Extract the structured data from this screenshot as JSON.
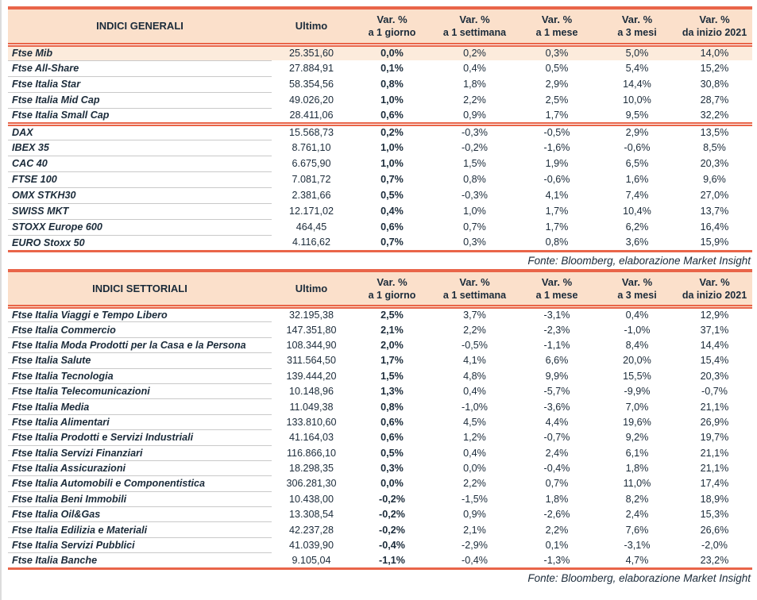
{
  "colors": {
    "accent_red": "#e96549",
    "header_bg": "#fbe0cb",
    "highlight_row_bg": "#fcebdc",
    "text_dark": "#1b2b3a",
    "row_line": "#c9c9c9"
  },
  "fonte": "Fonte: Bloomberg, elaborazione Market Insight",
  "columns": {
    "ultimo": "Ultimo",
    "var_label": "Var. %",
    "periods": [
      "a 1 giorno",
      "a 1 settimana",
      "a 1 mese",
      "a 3 mesi",
      "da inizio 2021"
    ]
  },
  "tables": [
    {
      "id": "general",
      "title": "INDICI GENERALI",
      "groups": [
        {
          "rows": [
            {
              "name": "Ftse Mib",
              "ultimo": "25.351,60",
              "vars": [
                "0,0%",
                "0,2%",
                "0,3%",
                "5,0%",
                "14,0%"
              ],
              "highlight": true
            },
            {
              "name": "Ftse All-Share",
              "ultimo": "27.884,91",
              "vars": [
                "0,1%",
                "0,4%",
                "0,5%",
                "5,4%",
                "15,2%"
              ]
            },
            {
              "name": "Ftse Italia Star",
              "ultimo": "58.354,56",
              "vars": [
                "0,8%",
                "1,8%",
                "2,9%",
                "14,4%",
                "30,8%"
              ]
            },
            {
              "name": "Ftse Italia Mid Cap",
              "ultimo": "49.026,20",
              "vars": [
                "1,0%",
                "2,2%",
                "2,5%",
                "10,0%",
                "28,7%"
              ]
            },
            {
              "name": "Ftse Italia Small Cap",
              "ultimo": "28.411,06",
              "vars": [
                "0,6%",
                "0,9%",
                "1,7%",
                "9,5%",
                "32,2%"
              ]
            }
          ]
        },
        {
          "rows": [
            {
              "name": "DAX",
              "ultimo": "15.568,73",
              "vars": [
                "0,2%",
                "-0,3%",
                "-0,5%",
                "2,9%",
                "13,5%"
              ]
            },
            {
              "name": "IBEX 35",
              "ultimo": "8.761,10",
              "vars": [
                "1,0%",
                "-0,2%",
                "-1,6%",
                "-0,6%",
                "8,5%"
              ]
            },
            {
              "name": "CAC 40",
              "ultimo": "6.675,90",
              "vars": [
                "1,0%",
                "1,5%",
                "1,9%",
                "6,5%",
                "20,3%"
              ]
            },
            {
              "name": "FTSE 100",
              "ultimo": "7.081,72",
              "vars": [
                "0,7%",
                "0,8%",
                "-0,6%",
                "1,6%",
                "9,6%"
              ]
            },
            {
              "name": "OMX STKH30",
              "ultimo": "2.381,66",
              "vars": [
                "0,5%",
                "-0,3%",
                "4,1%",
                "7,4%",
                "27,0%"
              ]
            },
            {
              "name": "SWISS MKT",
              "ultimo": "12.171,02",
              "vars": [
                "0,4%",
                "1,0%",
                "1,7%",
                "10,4%",
                "13,7%"
              ]
            },
            {
              "name": "STOXX Europe 600",
              "ultimo": "464,45",
              "vars": [
                "0,6%",
                "0,7%",
                "1,7%",
                "6,2%",
                "16,4%"
              ]
            },
            {
              "name": "EURO Stoxx 50",
              "ultimo": "4.116,62",
              "vars": [
                "0,7%",
                "0,3%",
                "0,8%",
                "3,6%",
                "15,9%"
              ]
            }
          ]
        }
      ]
    },
    {
      "id": "sectoral",
      "title": "INDICI SETTORIALI",
      "groups": [
        {
          "rows": [
            {
              "name": "Ftse Italia Viaggi e Tempo Libero",
              "ultimo": "32.195,38",
              "vars": [
                "2,5%",
                "3,7%",
                "-3,1%",
                "0,4%",
                "12,9%"
              ]
            },
            {
              "name": "Ftse Italia Commercio",
              "ultimo": "147.351,80",
              "vars": [
                "2,1%",
                "2,2%",
                "-2,3%",
                "-1,0%",
                "37,1%"
              ]
            },
            {
              "name": "Ftse Italia Moda Prodotti per la Casa e la Persona",
              "ultimo": "108.344,90",
              "vars": [
                "2,0%",
                "-0,5%",
                "-1,1%",
                "8,4%",
                "14,4%"
              ]
            },
            {
              "name": "Ftse Italia Salute",
              "ultimo": "311.564,50",
              "vars": [
                "1,7%",
                "4,1%",
                "6,6%",
                "20,0%",
                "15,4%"
              ]
            },
            {
              "name": "Ftse Italia Tecnologia",
              "ultimo": "139.444,20",
              "vars": [
                "1,5%",
                "4,8%",
                "9,9%",
                "15,5%",
                "20,3%"
              ]
            },
            {
              "name": "Ftse Italia Telecomunicazioni",
              "ultimo": "10.148,96",
              "vars": [
                "1,3%",
                "0,4%",
                "-5,7%",
                "-9,9%",
                "-0,7%"
              ]
            },
            {
              "name": "Ftse Italia Media",
              "ultimo": "11.049,38",
              "vars": [
                "0,8%",
                "-1,0%",
                "-3,6%",
                "7,0%",
                "21,1%"
              ]
            },
            {
              "name": "Ftse Italia Alimentari",
              "ultimo": "133.810,60",
              "vars": [
                "0,6%",
                "4,5%",
                "4,4%",
                "19,6%",
                "26,9%"
              ]
            },
            {
              "name": "Ftse Italia Prodotti e Servizi Industriali",
              "ultimo": "41.164,03",
              "vars": [
                "0,6%",
                "1,2%",
                "-0,7%",
                "9,2%",
                "19,7%"
              ]
            },
            {
              "name": "Ftse Italia Servizi Finanziari",
              "ultimo": "116.866,10",
              "vars": [
                "0,5%",
                "0,4%",
                "2,4%",
                "6,1%",
                "21,1%"
              ]
            },
            {
              "name": "Ftse Italia Assicurazioni",
              "ultimo": "18.298,35",
              "vars": [
                "0,3%",
                "0,0%",
                "-0,4%",
                "1,8%",
                "21,1%"
              ]
            },
            {
              "name": "Ftse Italia Automobili e Componentistica",
              "ultimo": "306.281,30",
              "vars": [
                "0,0%",
                "2,2%",
                "0,7%",
                "11,0%",
                "17,4%"
              ]
            },
            {
              "name": "Ftse Italia Beni Immobili",
              "ultimo": "10.438,00",
              "vars": [
                "-0,2%",
                "-1,5%",
                "1,8%",
                "8,2%",
                "18,9%"
              ]
            },
            {
              "name": "Ftse Italia Oil&Gas",
              "ultimo": "13.308,54",
              "vars": [
                "-0,2%",
                "0,9%",
                "-2,6%",
                "2,4%",
                "15,3%"
              ]
            },
            {
              "name": "Ftse Italia Edilizia e Materiali",
              "ultimo": "42.237,28",
              "vars": [
                "-0,2%",
                "2,1%",
                "2,2%",
                "7,6%",
                "26,6%"
              ]
            },
            {
              "name": "Ftse Italia Servizi Pubblici",
              "ultimo": "41.039,90",
              "vars": [
                "-0,4%",
                "-2,9%",
                "0,1%",
                "-3,1%",
                "-2,0%"
              ]
            },
            {
              "name": "Ftse Italia Banche",
              "ultimo": "9.105,04",
              "vars": [
                "-1,1%",
                "-0,4%",
                "-1,3%",
                "4,7%",
                "23,2%"
              ]
            }
          ]
        }
      ]
    }
  ]
}
